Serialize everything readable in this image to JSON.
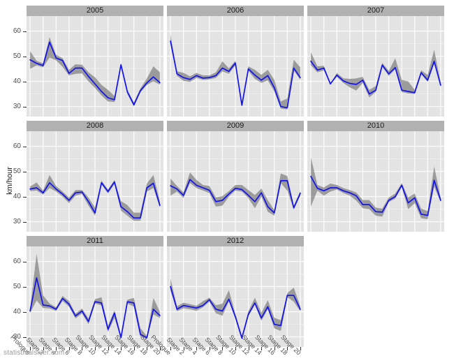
{
  "watermark": "statisticalskier.com",
  "chart_data": {
    "type": "line",
    "title": "",
    "ylabel": "km/hour",
    "xlabel": "",
    "ylim": [
      26,
      66
    ],
    "grid": true,
    "legend_position": "none",
    "y_major_ticks": [
      30,
      40,
      50,
      60
    ],
    "y_minor_gridlines": [
      35,
      45,
      55
    ],
    "x_tick_labels": [
      "Prologue",
      "Stage 2",
      "Stage 4",
      "Stage 6",
      "Stage 8",
      "Stage 10",
      "Stage 12",
      "Stage 14",
      "Stage 16",
      "Stage 18",
      "Stage 20"
    ],
    "x_tick_indices": [
      0,
      2,
      4,
      6,
      8,
      10,
      12,
      14,
      16,
      18,
      20
    ],
    "points_per_series": 21,
    "series_note": "mean stage speed (blue line) with grey range ribbon (lower/upper), faceted by year",
    "colors": {
      "panel_bg": "#e3e3e3",
      "strip_bg": "#b1b1b1",
      "strip_text": "#1a1a1a",
      "grid_major": "#fafafa",
      "grid_minor": "#efefef",
      "line": "#1212ee",
      "ribbon": "#6f6f6f",
      "ribbon_opacity": 0.62,
      "axis_text": "#4d4d4d",
      "tick_mark": "#333333",
      "watermark": "#9a9a9a"
    },
    "facets": [
      {
        "year": "2005",
        "mean": [
          48.6,
          47.2,
          46.3,
          55.6,
          49.3,
          48.3,
          43.2,
          45.3,
          45.3,
          42,
          39,
          36,
          33.5,
          32.7,
          46.6,
          35.8,
          30.7,
          36.3,
          39.4,
          41.8,
          39.5
        ],
        "lower": [
          45,
          46.4,
          45.6,
          49.5,
          48.4,
          45.8,
          42.4,
          43,
          43.2,
          40,
          37.4,
          34.4,
          32,
          31.8,
          45.7,
          35,
          30,
          35.6,
          38.6,
          40,
          38.7
        ],
        "upper": [
          52,
          48.2,
          47.2,
          57.6,
          50.6,
          49.2,
          44.6,
          46.8,
          46.6,
          43.6,
          41.6,
          38.6,
          36.6,
          34.2,
          47.4,
          36.6,
          31.6,
          37.2,
          41.2,
          46,
          43.6
        ]
      },
      {
        "year": "2006",
        "mean": [
          56,
          43,
          41.5,
          40.8,
          42.3,
          41.3,
          41.5,
          42.3,
          45.3,
          44,
          47.3,
          30.5,
          45,
          42.5,
          40.5,
          42.3,
          37.5,
          30,
          29.5,
          45.3,
          41.5
        ],
        "lower": [
          55,
          42.2,
          40.2,
          39.8,
          41.4,
          40.6,
          40.8,
          41.4,
          44,
          43,
          46.4,
          30,
          44.2,
          41,
          39.4,
          40.4,
          36,
          29.2,
          28.8,
          44.4,
          40.6
        ],
        "upper": [
          58.6,
          44,
          43.4,
          42,
          43.4,
          42.4,
          42.4,
          43.6,
          48,
          45.2,
          48.2,
          31.2,
          46,
          44.6,
          42.6,
          44.6,
          40.6,
          32,
          33.2,
          48.6,
          45.6
        ]
      },
      {
        "year": "2007",
        "mean": [
          48,
          44.5,
          45.3,
          39,
          42.5,
          40.2,
          39.2,
          38.8,
          40.5,
          35,
          36.5,
          46.5,
          43,
          45.5,
          36.5,
          36,
          35.5,
          43.5,
          40.5,
          48,
          38.5
        ],
        "lower": [
          46.4,
          43.6,
          44.4,
          39,
          41.8,
          39.4,
          37.6,
          36.4,
          39.4,
          33.6,
          35.8,
          45.8,
          42.2,
          44.8,
          35.8,
          35.2,
          35,
          42.8,
          39.8,
          47,
          38
        ],
        "upper": [
          51.6,
          46,
          46.2,
          39,
          43.4,
          41.2,
          41,
          41.2,
          41.8,
          36.6,
          38.2,
          47.4,
          44.2,
          49.2,
          40.6,
          40,
          36.6,
          44.4,
          42.6,
          52.6,
          39.6
        ]
      },
      {
        "year": "2008",
        "mean": [
          43,
          43.5,
          41.5,
          45.5,
          43,
          41,
          38.5,
          41.5,
          41.8,
          38,
          33.5,
          45.5,
          42,
          45.8,
          36,
          34,
          31.5,
          31.5,
          43.5,
          45.3,
          36.5
        ],
        "lower": [
          42.2,
          42.4,
          40.8,
          43.4,
          42,
          40,
          37.4,
          40.4,
          41,
          36.4,
          32.4,
          44.8,
          41.2,
          45,
          34.4,
          32.4,
          30.4,
          30.4,
          42,
          43.4,
          35.6
        ],
        "upper": [
          44,
          45.6,
          42.4,
          48.6,
          44.2,
          42,
          39.6,
          42.6,
          42.6,
          39.6,
          35.6,
          46.4,
          42.8,
          46.6,
          38.2,
          36.6,
          33.6,
          33.6,
          45.2,
          48.6,
          38.2
        ]
      },
      {
        "year": "2009",
        "mean": [
          44.3,
          43,
          40.5,
          46.8,
          44.5,
          43.5,
          42.5,
          38,
          38.5,
          41,
          43.3,
          42.8,
          40.5,
          38,
          41.5,
          36,
          33.5,
          46.3,
          46.3,
          35.5,
          41.3
        ],
        "lower": [
          40.4,
          42,
          39.4,
          45.4,
          43.4,
          42.4,
          41.4,
          36,
          36.4,
          40,
          42.4,
          42,
          39.4,
          35.4,
          40,
          34,
          32.4,
          45.4,
          42.4,
          34.8,
          40.4
        ],
        "upper": [
          47.2,
          44.2,
          41.6,
          49.6,
          46.6,
          44.6,
          44.2,
          39.6,
          40.2,
          42.2,
          44.6,
          44.6,
          42.6,
          40.6,
          43.2,
          38.6,
          34.6,
          49.2,
          48.2,
          36.4,
          42.2
        ]
      },
      {
        "year": "2010",
        "mean": [
          48,
          43.3,
          42.3,
          43.5,
          43.5,
          42.3,
          41.5,
          40.3,
          36.8,
          36.8,
          34,
          33.8,
          38.5,
          40,
          44.5,
          37.5,
          39.5,
          33,
          32.5,
          46.5,
          38.5
        ],
        "lower": [
          36,
          42.4,
          40.4,
          42,
          42.8,
          41.4,
          40.4,
          38.4,
          35.4,
          35,
          32.4,
          32,
          37.8,
          39.2,
          43.8,
          35,
          37.4,
          31.4,
          31,
          44,
          37.8
        ],
        "upper": [
          55.6,
          44.6,
          43.6,
          45.2,
          44.6,
          43.4,
          42.6,
          41.6,
          38.6,
          38.6,
          35.6,
          35.2,
          39.6,
          41.2,
          45.4,
          39.6,
          41.2,
          35.2,
          34.2,
          52,
          39.6
        ]
      },
      {
        "year": "2011",
        "mean": [
          40.3,
          53.5,
          42.7,
          42.3,
          41,
          45.3,
          43,
          38.3,
          40.3,
          36.1,
          44,
          43.5,
          33,
          39.5,
          29.7,
          44,
          43.5,
          31,
          29.7,
          41,
          38.5
        ],
        "lower": [
          39.5,
          44.5,
          41.5,
          41.3,
          40.3,
          44.3,
          42,
          37.3,
          39.3,
          35,
          43.3,
          42.5,
          32,
          37.5,
          29.2,
          43.3,
          42,
          30,
          29.2,
          39,
          37.5
        ],
        "upper": [
          41.3,
          63,
          46.5,
          43.3,
          41.8,
          46.3,
          44.3,
          39.3,
          41.3,
          37.3,
          45,
          45.8,
          34.5,
          40.5,
          30.5,
          44.8,
          45.5,
          33.5,
          30.3,
          45.5,
          40
        ]
      },
      {
        "year": "2012",
        "mean": [
          50,
          41,
          42.5,
          42,
          41.5,
          42.5,
          44.8,
          41,
          40.3,
          45,
          38,
          29.5,
          39,
          43.5,
          37.5,
          42,
          35,
          34.5,
          46.5,
          46.5,
          41
        ],
        "lower": [
          48.4,
          40.2,
          41.4,
          41,
          40.4,
          41.8,
          44,
          39.4,
          38.4,
          44.2,
          37.2,
          29,
          38.2,
          42.8,
          36.4,
          41,
          33.4,
          32.4,
          45.8,
          44,
          40.2
        ],
        "upper": [
          53.2,
          42.2,
          43.6,
          43,
          42.4,
          44.2,
          45.6,
          42.6,
          43.2,
          48.6,
          39.2,
          30.4,
          40.2,
          45.6,
          39.6,
          44.6,
          37.6,
          36.6,
          47.4,
          49.6,
          42.2
        ]
      }
    ]
  }
}
